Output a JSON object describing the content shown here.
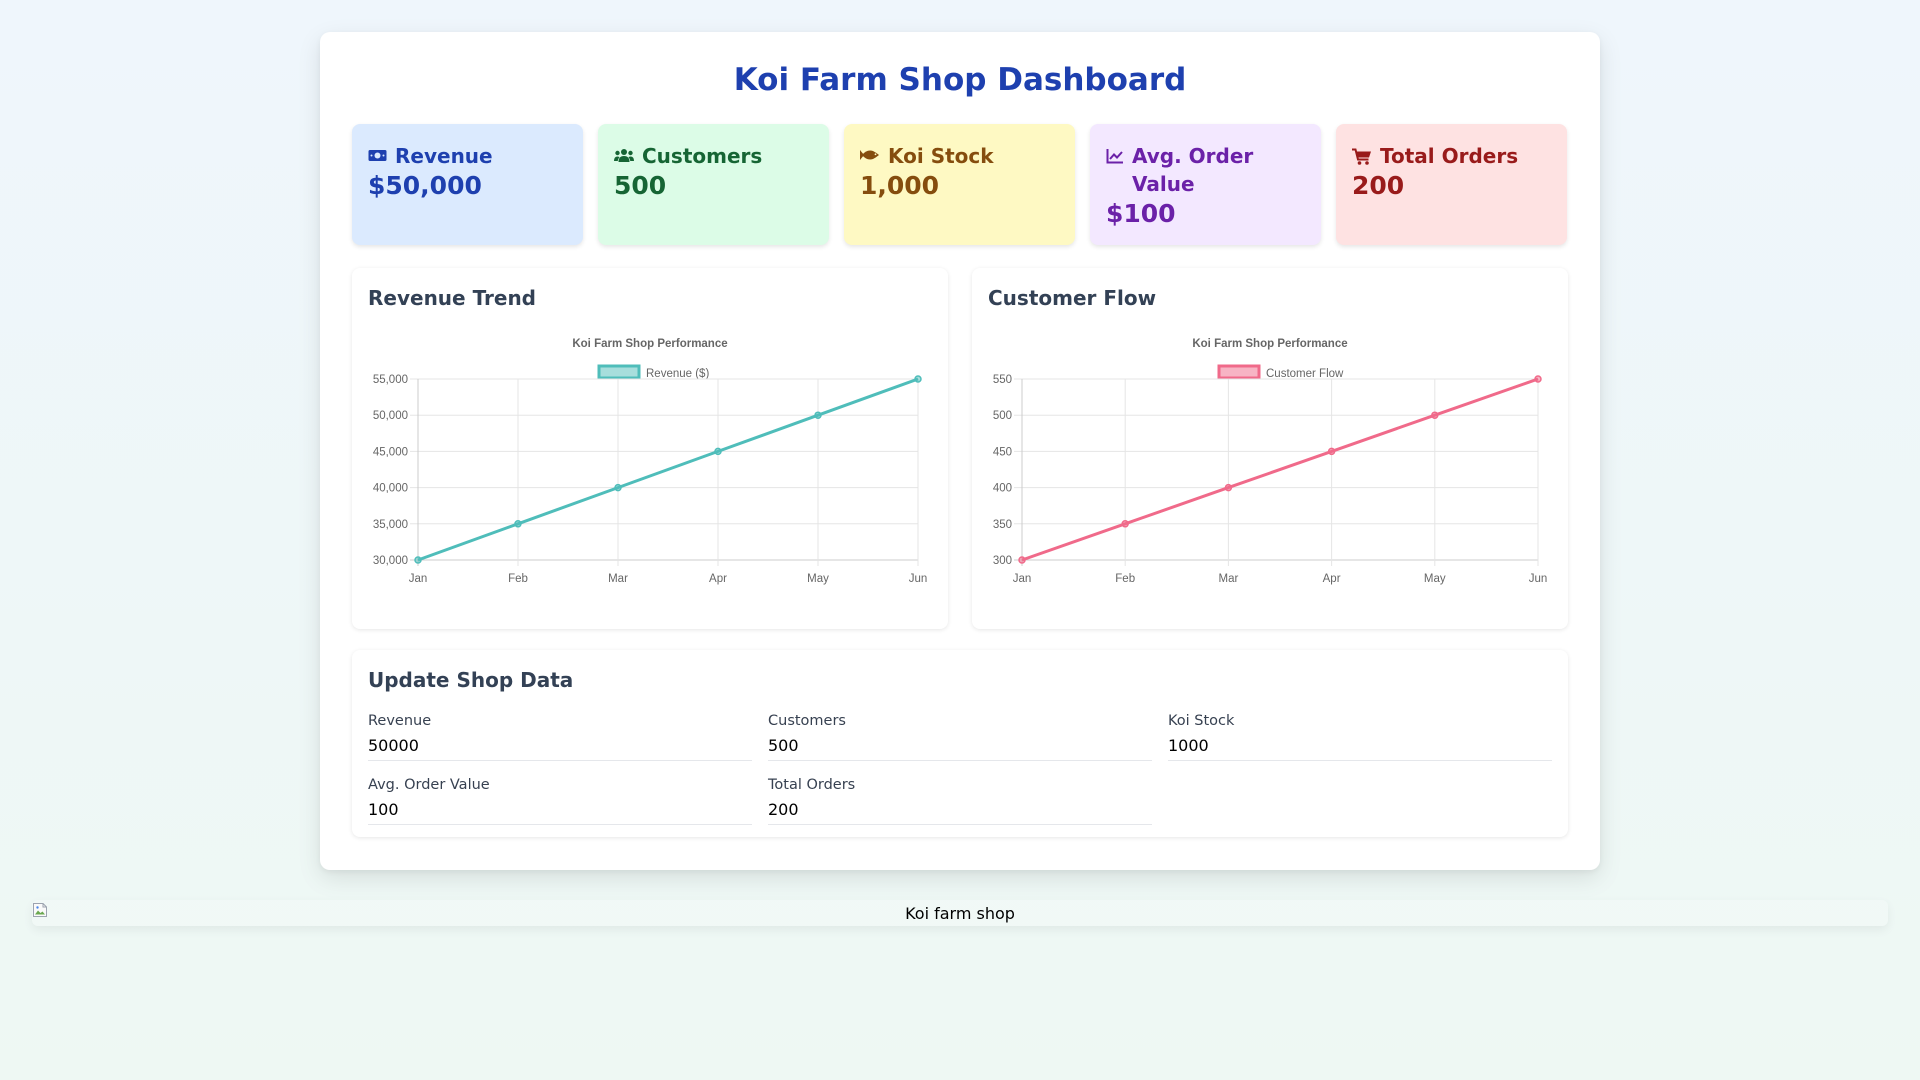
{
  "title": "Koi Farm Shop Dashboard",
  "colors": {
    "accent": "#1e40af",
    "revenue_line": "#4fbdba",
    "customer_line": "#f06a8a"
  },
  "cards": [
    {
      "icon": "money-bill-icon",
      "label": "Revenue",
      "value": "$50,000",
      "bg": "#dbeafe",
      "color": "#1e40af"
    },
    {
      "icon": "users-icon",
      "label": "Customers",
      "value": "500",
      "bg": "#dcfce7",
      "color": "#166534"
    },
    {
      "icon": "fish-icon",
      "label": "Koi Stock",
      "value": "1,000",
      "bg": "#fef9c3",
      "color": "#854d0e"
    },
    {
      "icon": "chart-line-icon",
      "label": "Avg. Order Value",
      "value": "$100",
      "bg": "#f3e8ff",
      "color": "#6b21a8"
    },
    {
      "icon": "cart-icon",
      "label": "Total Orders",
      "value": "200",
      "bg": "#fee2e2",
      "color": "#991b1b"
    }
  ],
  "revenue_panel": {
    "heading": "Revenue Trend"
  },
  "customer_panel": {
    "heading": "Customer Flow"
  },
  "chart_data": [
    {
      "type": "line",
      "title": "Koi Farm Shop Performance",
      "categories": [
        "Jan",
        "Feb",
        "Mar",
        "Apr",
        "May",
        "Jun"
      ],
      "series": [
        {
          "name": "Revenue ($)",
          "values": [
            30000,
            35000,
            40000,
            45000,
            50000,
            55000
          ]
        }
      ],
      "ylim": [
        30000,
        55000
      ],
      "yticks": [
        "30,000",
        "35,000",
        "40,000",
        "45,000",
        "50,000",
        "55,000"
      ],
      "grid": true,
      "legend": "top-center"
    },
    {
      "type": "line",
      "title": "Koi Farm Shop Performance",
      "categories": [
        "Jan",
        "Feb",
        "Mar",
        "Apr",
        "May",
        "Jun"
      ],
      "series": [
        {
          "name": "Customer Flow",
          "values": [
            300,
            350,
            400,
            450,
            500,
            550
          ]
        }
      ],
      "ylim": [
        300,
        550
      ],
      "yticks": [
        "300",
        "350",
        "400",
        "450",
        "500",
        "550"
      ],
      "grid": true,
      "legend": "top-center"
    }
  ],
  "form": {
    "heading": "Update Shop Data",
    "fields": [
      {
        "label": "Revenue",
        "value": "50000"
      },
      {
        "label": "Customers",
        "value": "500"
      },
      {
        "label": "Koi Stock",
        "value": "1000"
      },
      {
        "label": "Avg. Order Value",
        "value": "100"
      },
      {
        "label": "Total Orders",
        "value": "200"
      }
    ]
  },
  "footer_image": {
    "alt": "Koi farm shop"
  }
}
